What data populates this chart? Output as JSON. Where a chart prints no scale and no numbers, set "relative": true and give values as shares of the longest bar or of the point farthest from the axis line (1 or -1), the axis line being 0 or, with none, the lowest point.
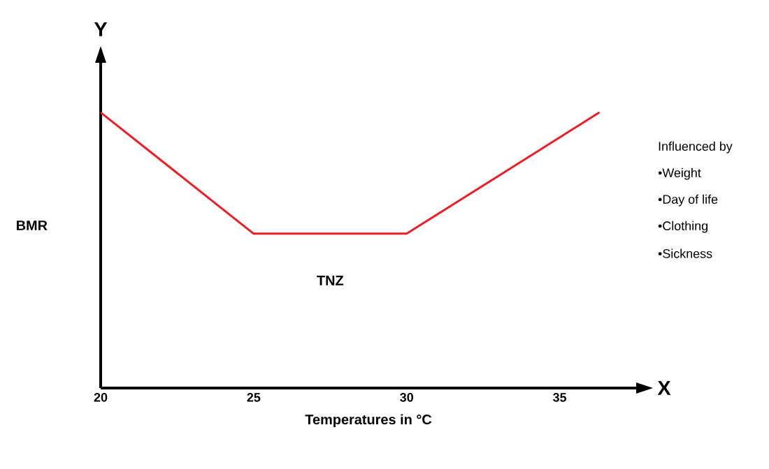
{
  "chart_data": {
    "type": "line",
    "relative": true,
    "xlabel": "Temperatures in °C",
    "ylabel": "BMR",
    "x": [
      20,
      25,
      30,
      36.3
    ],
    "series": [
      {
        "color": "#ee1c25",
        "values": [
          1,
          0.56,
          0.56,
          1
        ]
      }
    ],
    "xlim": [
      20,
      37.5
    ],
    "xticks": [
      20,
      25,
      30,
      35
    ],
    "marker": "none",
    "line_style": "solid",
    "grid": false,
    "annotations": [
      "Y",
      "X",
      "TNZ",
      "Influenced by",
      "•Weight",
      "•Day of life",
      "•Clothing",
      "•Sickness"
    ]
  }
}
